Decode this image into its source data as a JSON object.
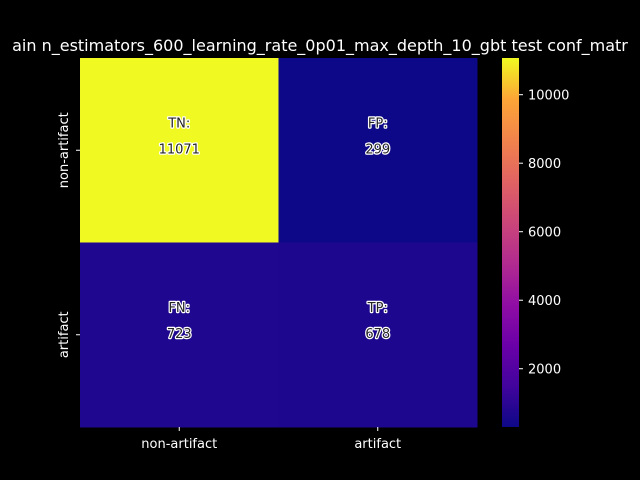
{
  "chart_data": {
    "type": "heatmap",
    "title": "ain n_estimators_600_learning_rate_0p01_max_depth_10_gbt test conf_matr",
    "row_labels": [
      "non-artifact",
      "artifact"
    ],
    "col_labels": [
      "non-artifact",
      "artifact"
    ],
    "cells": [
      [
        {
          "tag": "TN:",
          "value": 11071
        },
        {
          "tag": "FP:",
          "value": 299
        }
      ],
      [
        {
          "tag": "FN:",
          "value": 723
        },
        {
          "tag": "TP:",
          "value": 678
        }
      ]
    ],
    "colorbar": {
      "colormap": "plasma",
      "range": [
        299,
        11071
      ],
      "ticks": [
        2000,
        4000,
        6000,
        8000,
        10000
      ]
    }
  },
  "colors": {
    "background": "#000000",
    "text": "#ffffff",
    "cell_text": "#262626",
    "cell_text_outline": "#ffffff"
  }
}
